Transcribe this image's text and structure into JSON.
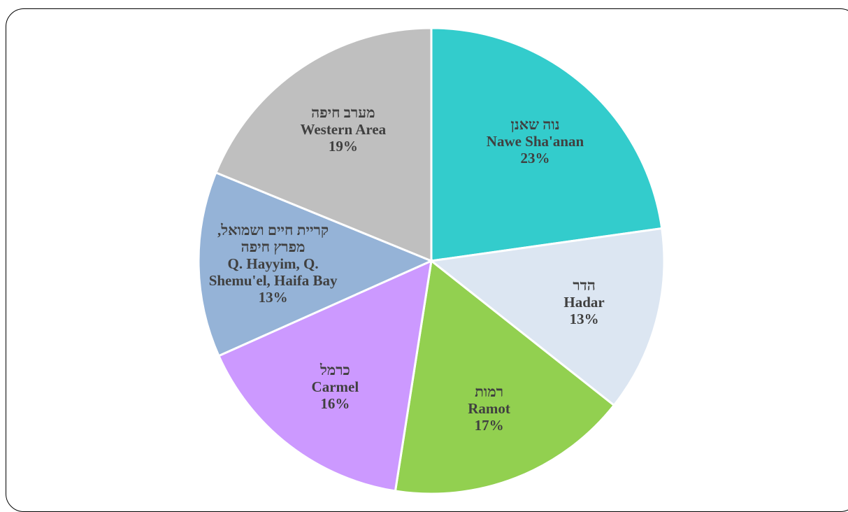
{
  "chart_data": {
    "type": "pie",
    "categories_he": [
      "נוה שאנן",
      "הדר",
      "רמות",
      "כרמל",
      "קריית חיים ושמואל, מפרץ חיפה",
      "מערב חיפה"
    ],
    "categories": [
      "Nawe Sha'anan",
      "Hadar",
      "Ramot",
      "Carmel",
      "Q. Hayyim, Q. Shemu'el, Haifa Bay",
      "Western Area"
    ],
    "values": [
      23,
      13,
      17,
      16,
      13,
      19
    ],
    "value_labels": [
      "23%",
      "13%",
      "17%",
      "16%",
      "13%",
      "19%"
    ],
    "colors": [
      "#33cccc",
      "#dce6f2",
      "#92d050",
      "#cc99ff",
      "#95b3d7",
      "#bfbfbf"
    ]
  }
}
